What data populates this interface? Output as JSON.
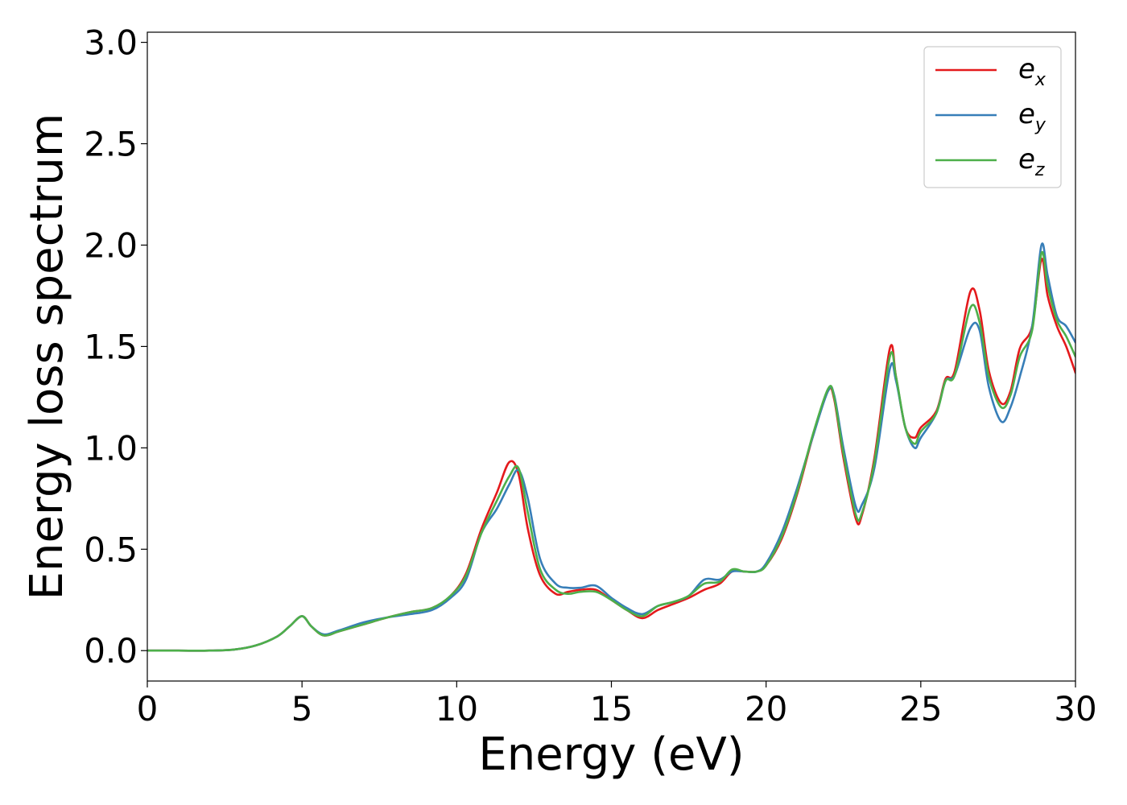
{
  "chart_data": {
    "type": "line",
    "xlabel": "Energy (eV)",
    "ylabel": "Energy loss spectrum",
    "xlim": [
      0,
      30
    ],
    "ylim": [
      -0.15,
      3.05
    ],
    "xticks": [
      0,
      5,
      10,
      15,
      20,
      25,
      30
    ],
    "xtick_labels": [
      "0",
      "5",
      "10",
      "15",
      "20",
      "25",
      "30"
    ],
    "yticks": [
      0.0,
      0.5,
      1.0,
      1.5,
      2.0,
      2.5,
      3.0
    ],
    "ytick_labels": [
      "0.0",
      "0.5",
      "1.0",
      "1.5",
      "2.0",
      "2.5",
      "3.0"
    ],
    "grid": false,
    "legend_position": "top-right",
    "series": [
      {
        "name_base": "e",
        "name_sub": "x",
        "color": "#e41a1c",
        "x": [
          0,
          1,
          2,
          2.8,
          3.5,
          4.2,
          4.6,
          5.0,
          5.3,
          5.7,
          6.2,
          7,
          7.8,
          8.5,
          9.2,
          9.8,
          10.3,
          10.8,
          11.3,
          11.7,
          12.0,
          12.3,
          12.7,
          13.2,
          13.6,
          14.0,
          14.5,
          15.0,
          15.5,
          16.0,
          16.5,
          17.0,
          17.5,
          18.0,
          18.5,
          18.9,
          19.3,
          19.7,
          20.0,
          20.5,
          21.0,
          21.5,
          22.0,
          22.2,
          22.5,
          22.9,
          23.1,
          23.5,
          24.0,
          24.2,
          24.5,
          24.8,
          25.0,
          25.5,
          25.8,
          26.1,
          26.6,
          26.9,
          27.2,
          27.6,
          27.9,
          28.2,
          28.6,
          28.9,
          29.1,
          29.4,
          29.7,
          30.0
        ],
        "y": [
          0,
          0,
          0,
          0.005,
          0.025,
          0.07,
          0.12,
          0.17,
          0.12,
          0.075,
          0.095,
          0.13,
          0.165,
          0.19,
          0.21,
          0.27,
          0.38,
          0.6,
          0.78,
          0.93,
          0.87,
          0.6,
          0.37,
          0.28,
          0.29,
          0.3,
          0.3,
          0.25,
          0.2,
          0.16,
          0.2,
          0.23,
          0.26,
          0.3,
          0.33,
          0.39,
          0.39,
          0.39,
          0.42,
          0.55,
          0.77,
          1.05,
          1.28,
          1.24,
          0.95,
          0.65,
          0.67,
          0.95,
          1.49,
          1.35,
          1.1,
          1.05,
          1.1,
          1.18,
          1.34,
          1.38,
          1.77,
          1.68,
          1.38,
          1.22,
          1.28,
          1.49,
          1.6,
          1.93,
          1.75,
          1.6,
          1.5,
          1.37
        ]
      },
      {
        "name_base": "e",
        "name_sub": "y",
        "color": "#377eb8",
        "x": [
          0,
          1,
          2,
          2.8,
          3.5,
          4.2,
          4.6,
          5.0,
          5.3,
          5.7,
          6.2,
          7,
          7.8,
          8.5,
          9.2,
          9.8,
          10.3,
          10.8,
          11.3,
          11.7,
          12.0,
          12.3,
          12.7,
          13.2,
          13.6,
          14.0,
          14.5,
          15.0,
          15.5,
          16.0,
          16.5,
          17.0,
          17.5,
          18.0,
          18.5,
          18.9,
          19.3,
          19.7,
          20.0,
          20.5,
          21.0,
          21.5,
          22.0,
          22.2,
          22.5,
          22.9,
          23.1,
          23.5,
          24.0,
          24.2,
          24.5,
          24.8,
          25.0,
          25.5,
          25.8,
          26.1,
          26.6,
          26.9,
          27.2,
          27.6,
          27.9,
          28.2,
          28.6,
          28.9,
          29.1,
          29.4,
          29.7,
          30.0
        ],
        "y": [
          0,
          0,
          0,
          0.005,
          0.025,
          0.07,
          0.12,
          0.17,
          0.12,
          0.08,
          0.1,
          0.14,
          0.165,
          0.18,
          0.2,
          0.26,
          0.35,
          0.58,
          0.7,
          0.82,
          0.89,
          0.75,
          0.45,
          0.33,
          0.31,
          0.31,
          0.32,
          0.26,
          0.21,
          0.18,
          0.22,
          0.24,
          0.27,
          0.35,
          0.35,
          0.39,
          0.39,
          0.39,
          0.43,
          0.58,
          0.8,
          1.05,
          1.28,
          1.26,
          1.0,
          0.71,
          0.72,
          0.9,
          1.39,
          1.33,
          1.1,
          1.0,
          1.05,
          1.17,
          1.33,
          1.36,
          1.59,
          1.58,
          1.3,
          1.13,
          1.2,
          1.35,
          1.6,
          2.0,
          1.85,
          1.65,
          1.6,
          1.52
        ]
      },
      {
        "name_base": "e",
        "name_sub": "z",
        "color": "#4daf4a",
        "x": [
          0,
          1,
          2,
          2.8,
          3.5,
          4.2,
          4.6,
          5.0,
          5.3,
          5.7,
          6.2,
          7,
          7.8,
          8.5,
          9.2,
          9.8,
          10.3,
          10.8,
          11.3,
          11.7,
          12.0,
          12.3,
          12.7,
          13.2,
          13.6,
          14.0,
          14.5,
          15.0,
          15.5,
          16.0,
          16.5,
          17.0,
          17.5,
          18.0,
          18.5,
          18.9,
          19.3,
          19.7,
          20.0,
          20.5,
          21.0,
          21.5,
          22.0,
          22.2,
          22.5,
          22.9,
          23.1,
          23.5,
          24.0,
          24.2,
          24.5,
          24.8,
          25.0,
          25.5,
          25.8,
          26.1,
          26.6,
          26.9,
          27.2,
          27.6,
          27.9,
          28.2,
          28.6,
          28.9,
          29.1,
          29.4,
          29.7,
          30.0
        ],
        "y": [
          0,
          0,
          0,
          0.005,
          0.025,
          0.07,
          0.12,
          0.17,
          0.12,
          0.075,
          0.095,
          0.13,
          0.165,
          0.19,
          0.21,
          0.27,
          0.37,
          0.58,
          0.74,
          0.86,
          0.9,
          0.68,
          0.4,
          0.3,
          0.28,
          0.29,
          0.29,
          0.25,
          0.2,
          0.17,
          0.22,
          0.24,
          0.27,
          0.33,
          0.34,
          0.4,
          0.39,
          0.39,
          0.42,
          0.56,
          0.78,
          1.06,
          1.29,
          1.25,
          0.97,
          0.67,
          0.68,
          0.93,
          1.45,
          1.35,
          1.1,
          1.02,
          1.08,
          1.17,
          1.33,
          1.36,
          1.69,
          1.62,
          1.35,
          1.2,
          1.26,
          1.45,
          1.58,
          1.96,
          1.8,
          1.63,
          1.55,
          1.45
        ]
      }
    ]
  }
}
